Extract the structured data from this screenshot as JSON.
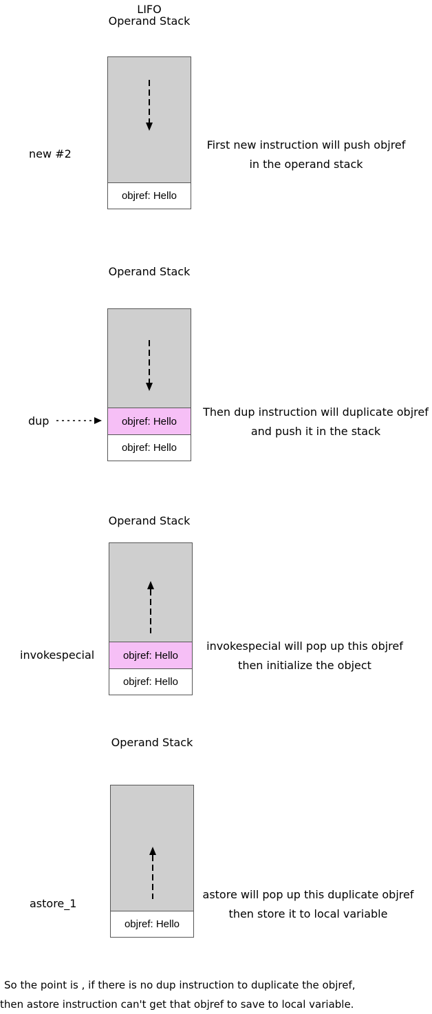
{
  "panels": [
    {
      "heading_lines": [
        "LIFO",
        "Operand Stack"
      ],
      "instruction": "new #2",
      "arrow_direction": "down",
      "cells": [
        {
          "label": "objref: Hello",
          "highlight": false
        }
      ],
      "description_lines": [
        "First new instruction will push objref",
        "in the operand stack"
      ]
    },
    {
      "heading_lines": [
        "Operand Stack"
      ],
      "instruction": "dup",
      "arrow_direction": "down",
      "cells": [
        {
          "label": "objref: Hello",
          "highlight": true
        },
        {
          "label": "objref: Hello",
          "highlight": false
        }
      ],
      "description_lines": [
        "Then dup instruction will duplicate objref",
        "and push it in the stack"
      ]
    },
    {
      "heading_lines": [
        "Operand Stack"
      ],
      "instruction": "invokespecial",
      "arrow_direction": "up",
      "cells": [
        {
          "label": "objref: Hello",
          "highlight": true
        },
        {
          "label": "objref: Hello",
          "highlight": false
        }
      ],
      "description_lines": [
        "invokespecial will pop up this objref",
        "then initialize the object"
      ]
    },
    {
      "heading_lines": [
        "Operand Stack"
      ],
      "instruction": "astore_1",
      "arrow_direction": "up",
      "cells": [
        {
          "label": "objref: Hello",
          "highlight": false
        }
      ],
      "description_lines": [
        "astore will pop up this duplicate objref",
        "then store it to local variable"
      ]
    }
  ],
  "conclusion_lines": [
    "So the point is , if there is no dup instruction to duplicate the objref,",
    "then astore instruction can't  get that objref to save to local variable."
  ],
  "colors": {
    "stack_fill": "#cfcfcf",
    "highlight_cell": "#f6bff6",
    "plain_cell": "#ffffff"
  }
}
